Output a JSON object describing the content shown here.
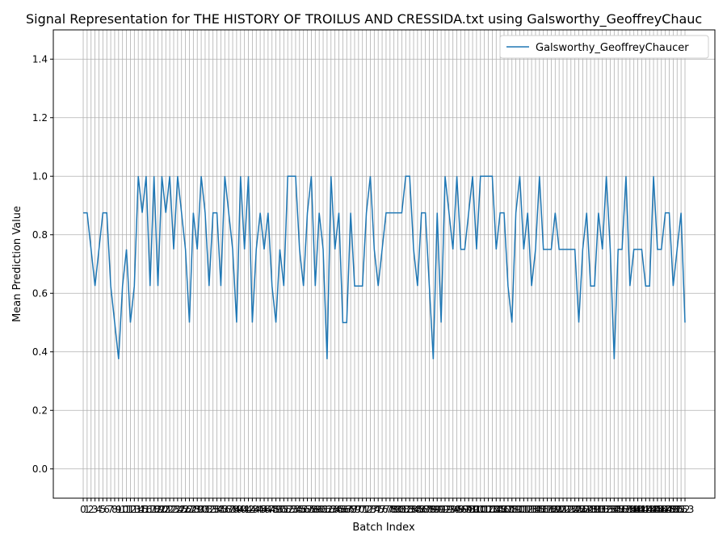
{
  "chart_data": {
    "type": "line",
    "title": "Signal Representation for THE HISTORY OF TROILUS AND CRESSIDA.txt using Galsworthy_GeoffreyChauc",
    "x_label": "Batch Index",
    "y_label": "Mean Prediction Value",
    "x": [
      0,
      1,
      2,
      3,
      4,
      5,
      6,
      7,
      8,
      9,
      10,
      11,
      12,
      13,
      14,
      15,
      16,
      17,
      18,
      19,
      20,
      21,
      22,
      23,
      24,
      25,
      26,
      27,
      28,
      29,
      30,
      31,
      32,
      33,
      34,
      35,
      36,
      37,
      38,
      39,
      40,
      41,
      42,
      43,
      44,
      45,
      46,
      47,
      48,
      49,
      50,
      51,
      52,
      53,
      54,
      55,
      56,
      57,
      58,
      59,
      60,
      61,
      62,
      63,
      64,
      65,
      66,
      67,
      68,
      69,
      70,
      71,
      72,
      73,
      74,
      75,
      76,
      77,
      78,
      79,
      80,
      81,
      82,
      83,
      84,
      85,
      86,
      87,
      88,
      89,
      90,
      91,
      92,
      93,
      94,
      95,
      96,
      97,
      98,
      99,
      100,
      101,
      102,
      103,
      104,
      105,
      106,
      107,
      108,
      109,
      110,
      111,
      112,
      113,
      114,
      115,
      116,
      117,
      118,
      119,
      120,
      121,
      122,
      123,
      124,
      125,
      126,
      127,
      128,
      129,
      130,
      131,
      132,
      133,
      134,
      135,
      136,
      137,
      138,
      139,
      140,
      141,
      142,
      143,
      144,
      145,
      146,
      147,
      148,
      149,
      150,
      151,
      152,
      153
    ],
    "series": [
      {
        "name": "Galsworthy_GeoffreyChaucer",
        "color": "#1f77b4",
        "values": [
          0.875,
          0.875,
          0.75,
          0.625,
          0.75,
          0.875,
          0.875,
          0.625,
          0.5,
          0.375,
          0.625,
          0.75,
          0.5,
          0.625,
          1.0,
          0.875,
          1.0,
          0.625,
          1.0,
          0.625,
          1.0,
          0.875,
          1.0,
          0.75,
          1.0,
          0.875,
          0.75,
          0.5,
          0.875,
          0.75,
          1.0,
          0.875,
          0.625,
          0.875,
          0.875,
          0.625,
          1.0,
          0.875,
          0.75,
          0.5,
          1.0,
          0.75,
          1.0,
          0.5,
          0.75,
          0.875,
          0.75,
          0.875,
          0.625,
          0.5,
          0.75,
          0.625,
          1.0,
          1.0,
          1.0,
          0.75,
          0.625,
          0.875,
          1.0,
          0.625,
          0.875,
          0.75,
          0.375,
          1.0,
          0.75,
          0.875,
          0.5,
          0.5,
          0.875,
          0.625,
          0.625,
          0.625,
          0.875,
          1.0,
          0.75,
          0.625,
          0.75,
          0.875,
          0.875,
          0.875,
          0.875,
          0.875,
          1.0,
          1.0,
          0.75,
          0.625,
          0.875,
          0.875,
          0.625,
          0.375,
          0.875,
          0.5,
          1.0,
          0.875,
          0.75,
          1.0,
          0.75,
          0.75,
          0.875,
          1.0,
          0.75,
          1.0,
          1.0,
          1.0,
          1.0,
          0.75,
          0.875,
          0.875,
          0.625,
          0.5,
          0.875,
          1.0,
          0.75,
          0.875,
          0.625,
          0.75,
          1.0,
          0.75,
          0.75,
          0.75,
          0.875,
          0.75,
          0.75,
          0.75,
          0.75,
          0.75,
          0.5,
          0.75,
          0.875,
          0.625,
          0.625,
          0.875,
          0.75,
          1.0,
          0.75,
          0.375,
          0.75,
          0.75,
          1.0,
          0.625,
          0.75,
          0.75,
          0.75,
          0.625,
          0.625,
          1.0,
          0.75,
          0.75,
          0.875,
          0.875,
          0.625,
          0.75,
          0.875,
          0.5
        ]
      }
    ],
    "xlim": [
      -7.6,
      160.6
    ],
    "ylim": [
      -0.1,
      1.5
    ],
    "yticks": [
      {
        "value": 0,
        "label": "0.0"
      },
      {
        "value": 0.2,
        "label": "0.2"
      },
      {
        "value": 0.4,
        "label": "0.4"
      },
      {
        "value": 0.6,
        "label": "0.6"
      },
      {
        "value": 0.8,
        "label": "0.8"
      },
      {
        "value": 1.0,
        "label": "1.0"
      },
      {
        "value": 1.2,
        "label": "1.2"
      },
      {
        "value": 1.4,
        "label": "1.4"
      }
    ],
    "grid": true,
    "legend": "upper right"
  }
}
